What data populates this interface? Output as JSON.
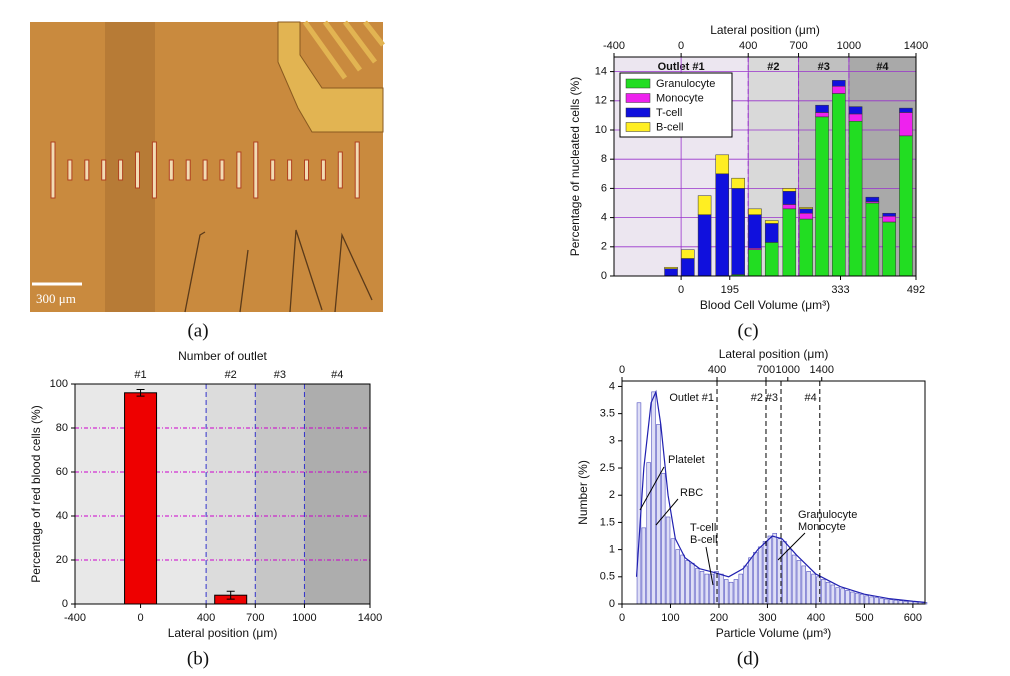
{
  "image": {
    "scale_label": "300 μm",
    "caption": "(a)"
  },
  "chart_data": [
    {
      "type": "bar",
      "caption": "(b)",
      "bottom_label": "Lateral position (μm)",
      "y_label": "Percentage of red blood cells (%)",
      "top_label": "Number of outlet",
      "x": [
        0,
        550
      ],
      "values": [
        96,
        4
      ],
      "errors": [
        1.5,
        1.8
      ],
      "color": "#ee0000",
      "xlim": [
        -400,
        1400
      ],
      "xticks": [
        -400,
        0,
        400,
        700,
        1000,
        1400
      ],
      "ylim": [
        0,
        100
      ],
      "yticks": [
        0,
        20,
        40,
        60,
        80,
        100
      ],
      "grid": true,
      "regions": [
        {
          "label": "#1",
          "from": -400,
          "to": 400,
          "color": "#e8e8e8"
        },
        {
          "label": "#2",
          "from": 400,
          "to": 700,
          "color": "#dcdcdc"
        },
        {
          "label": "#3",
          "from": 700,
          "to": 1000,
          "color": "#c6c6c6"
        },
        {
          "label": "#4",
          "from": 1000,
          "to": 1400,
          "color": "#adadad"
        }
      ]
    },
    {
      "type": "stacked_bar",
      "caption": "(c)",
      "bottom_label": "Blood Cell Volume (μm³)",
      "y_label": "Percentage of nucleated cells (%)",
      "top_label": "Lateral position (μm)",
      "x": [
        -60,
        40,
        140,
        245,
        340,
        440,
        540,
        645,
        745,
        840,
        940,
        1040,
        1140,
        1240,
        1340
      ],
      "series": [
        {
          "name": "Granulocyte",
          "color": "#22dd22",
          "values": [
            0,
            0,
            0,
            0,
            0.1,
            1.8,
            2.3,
            4.6,
            3.9,
            10.9,
            12.5,
            10.6,
            5.0,
            3.7,
            9.6
          ]
        },
        {
          "name": "Monocyte",
          "color": "#ee22ee",
          "values": [
            0,
            0,
            0,
            0,
            0,
            0.1,
            0,
            0.3,
            0.4,
            0.3,
            0.5,
            0.5,
            0.1,
            0.4,
            1.6
          ]
        },
        {
          "name": "T-cell",
          "color": "#1010dd",
          "values": [
            0.5,
            1.2,
            4.2,
            7.0,
            5.9,
            2.3,
            1.3,
            0.9,
            0.3,
            0.5,
            0.4,
            0.5,
            0.3,
            0.2,
            0.3
          ]
        },
        {
          "name": "B-cell",
          "color": "#ffee22",
          "values": [
            0.1,
            0.6,
            1.3,
            1.3,
            0.7,
            0.4,
            0.2,
            0.2,
            0.1,
            0,
            0,
            0,
            0,
            0,
            0
          ]
        }
      ],
      "xlim": [
        -400,
        1400
      ],
      "xticks": [
        -400,
        0,
        400,
        700,
        1000,
        1400
      ],
      "volume_ticks": [
        0,
        195,
        333,
        492
      ],
      "volume_tick_positions": [
        0,
        290,
        950,
        1400
      ],
      "ylim": [
        0,
        15
      ],
      "yticks": [
        0,
        2,
        4,
        6,
        8,
        10,
        12,
        14
      ],
      "grid": true,
      "legend": "upper left",
      "regions": [
        {
          "label": "Outlet #1",
          "from": -400,
          "to": 400,
          "color": "#ece6f0"
        },
        {
          "label": "#2",
          "from": 400,
          "to": 700,
          "color": "#d9d9d9"
        },
        {
          "label": "#3",
          "from": 700,
          "to": 1000,
          "color": "#c0c0c0"
        },
        {
          "label": "#4",
          "from": 1000,
          "to": 1400,
          "color": "#a9a9a9"
        }
      ]
    },
    {
      "type": "histogram",
      "caption": "(d)",
      "bottom_label": "Particle Volume (μm³)",
      "y_label": "Number (%)",
      "top_label": "Lateral position (μm)",
      "bins": [
        30,
        40,
        50,
        60,
        70,
        80,
        90,
        100,
        110,
        120,
        130,
        140,
        150,
        160,
        170,
        180,
        190,
        200,
        210,
        220,
        230,
        240,
        250,
        260,
        270,
        280,
        290,
        300,
        310,
        320,
        330,
        340,
        350,
        360,
        370,
        380,
        390,
        400,
        410,
        420,
        430,
        440,
        450,
        460,
        470,
        480,
        490,
        500,
        510,
        520,
        530,
        540,
        550,
        560,
        570,
        580,
        590,
        600,
        610,
        620,
        630
      ],
      "counts": [
        3.7,
        1.4,
        2.6,
        3.9,
        3.3,
        2.4,
        1.6,
        1.2,
        1.0,
        0.9,
        0.8,
        0.75,
        0.65,
        0.6,
        0.55,
        0.55,
        0.6,
        0.55,
        0.45,
        0.4,
        0.45,
        0.55,
        0.7,
        0.85,
        0.95,
        1.05,
        1.15,
        1.25,
        1.3,
        1.2,
        1.15,
        1.0,
        0.9,
        0.8,
        0.7,
        0.6,
        0.55,
        0.5,
        0.45,
        0.4,
        0.35,
        0.3,
        0.28,
        0.25,
        0.22,
        0.2,
        0.18,
        0.15,
        0.13,
        0.12,
        0.1,
        0.09,
        0.08,
        0.07,
        0.06,
        0.05,
        0.05,
        0.04,
        0.04,
        0.03
      ],
      "color": "#5050c0",
      "fit": {
        "x": [
          30,
          45,
          60,
          70,
          80,
          95,
          110,
          130,
          160,
          190,
          220,
          250,
          280,
          310,
          330,
          360,
          400,
          450,
          500,
          550,
          600,
          625
        ],
        "values": [
          0.5,
          2.5,
          3.7,
          3.9,
          3.3,
          2.0,
          1.2,
          0.85,
          0.65,
          0.58,
          0.5,
          0.65,
          1.0,
          1.25,
          1.2,
          0.9,
          0.55,
          0.32,
          0.18,
          0.1,
          0.05,
          0.03
        ],
        "color": "#2020b0"
      },
      "xlim": [
        0,
        625
      ],
      "xticks": [
        0,
        100,
        200,
        300,
        400,
        500,
        600
      ],
      "ylim": [
        0,
        4.1
      ],
      "yticks": [
        0,
        0.5,
        1,
        1.5,
        2,
        2.5,
        3,
        3.5,
        4
      ],
      "lateral_ticks": [
        0,
        400,
        700,
        1000,
        1400
      ],
      "lateral_tick_positions": [
        0,
        196,
        297,
        342,
        412
      ],
      "outlets": [
        {
          "label": "Outlet #1",
          "at": 196
        },
        {
          "label": "#2",
          "at": 297
        },
        {
          "label": "#3",
          "at": 328
        },
        {
          "label": "#4",
          "at": 408
        }
      ],
      "annotations": [
        "Platelet",
        "RBC",
        "T-cell",
        "B-cell",
        "Granulocyte",
        "Monocyte"
      ]
    }
  ]
}
